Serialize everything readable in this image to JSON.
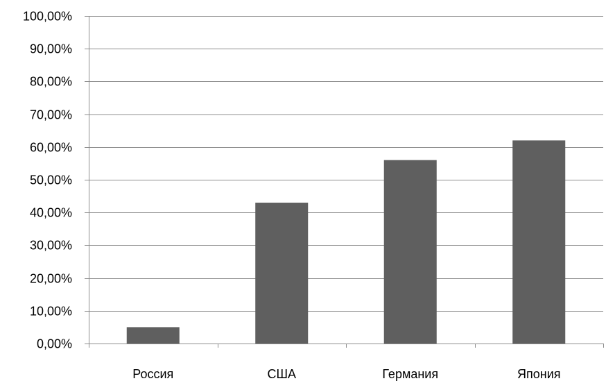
{
  "chart_data": {
    "type": "bar",
    "categories": [
      "Россия",
      "США",
      "Германия",
      "Япония"
    ],
    "values": [
      5,
      43,
      56,
      62
    ],
    "ylim": [
      0,
      100
    ],
    "y_ticks": [
      "0,00%",
      "10,00%",
      "20,00%",
      "30,00%",
      "40,00%",
      "50,00%",
      "60,00%",
      "70,00%",
      "80,00%",
      "90,00%",
      "100,00%"
    ],
    "grid": true,
    "legend": "none",
    "bar_color": "#5f5f5f",
    "grid_color": "#8c8c8c"
  }
}
